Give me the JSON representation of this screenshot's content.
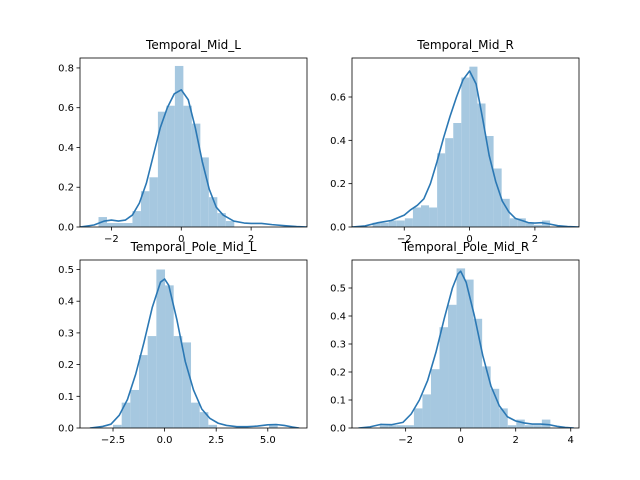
{
  "chart_data": [
    {
      "type": "histogram",
      "title": "Temporal_Mid_L",
      "xlim": [
        -2.9,
        3.6
      ],
      "ylim": [
        0,
        0.85
      ],
      "xticks": [
        -2,
        0,
        2
      ],
      "xtick_labels": [
        "−2",
        "0",
        "2"
      ],
      "yticks": [
        0,
        0.2,
        0.4,
        0.6,
        0.8
      ],
      "ytick_labels": [
        "0.0",
        "0.2",
        "0.4",
        "0.6",
        "0.8"
      ],
      "bin_width": 0.243,
      "bins": [
        {
          "x0": -2.37,
          "h": 0.05
        },
        {
          "x0": -2.127,
          "h": 0.02
        },
        {
          "x0": -1.884,
          "h": 0.02
        },
        {
          "x0": -1.641,
          "h": 0.02
        },
        {
          "x0": -1.398,
          "h": 0.08
        },
        {
          "x0": -1.155,
          "h": 0.18
        },
        {
          "x0": -0.912,
          "h": 0.25
        },
        {
          "x0": -0.669,
          "h": 0.58
        },
        {
          "x0": -0.426,
          "h": 0.61
        },
        {
          "x0": -0.183,
          "h": 0.81
        },
        {
          "x0": 0.06,
          "h": 0.61
        },
        {
          "x0": 0.303,
          "h": 0.52
        },
        {
          "x0": 0.546,
          "h": 0.35
        },
        {
          "x0": 0.789,
          "h": 0.15
        },
        {
          "x0": 1.032,
          "h": 0.07
        },
        {
          "x0": 1.275,
          "h": 0.03
        }
      ],
      "kde": {
        "x": [
          -2.9,
          -2.5,
          -2.2,
          -2.0,
          -1.8,
          -1.6,
          -1.4,
          -1.2,
          -1.0,
          -0.8,
          -0.6,
          -0.4,
          -0.2,
          0.0,
          0.2,
          0.4,
          0.6,
          0.8,
          1.0,
          1.2,
          1.5,
          1.8,
          2.0,
          2.3,
          2.6,
          3.0,
          3.3,
          3.6
        ],
        "y": [
          0.0,
          0.01,
          0.03,
          0.035,
          0.03,
          0.035,
          0.06,
          0.12,
          0.22,
          0.36,
          0.5,
          0.6,
          0.67,
          0.69,
          0.64,
          0.5,
          0.33,
          0.19,
          0.1,
          0.06,
          0.03,
          0.02,
          0.018,
          0.018,
          0.012,
          0.006,
          0.002,
          0.0
        ]
      }
    },
    {
      "type": "histogram",
      "title": "Temporal_Mid_R",
      "xlim": [
        -3.6,
        3.35
      ],
      "ylim": [
        0,
        0.78
      ],
      "xticks": [
        -2,
        0,
        2
      ],
      "xtick_labels": [
        "−2",
        "0",
        "2"
      ],
      "yticks": [
        0,
        0.2,
        0.4,
        0.6
      ],
      "ytick_labels": [
        "0.0",
        "0.2",
        "0.4",
        "0.6"
      ],
      "bin_width": 0.247,
      "bins": [
        {
          "x0": -2.97,
          "h": 0.02
        },
        {
          "x0": -2.723,
          "h": 0.02
        },
        {
          "x0": -2.476,
          "h": 0.03
        },
        {
          "x0": -2.229,
          "h": 0.03
        },
        {
          "x0": -1.982,
          "h": 0.04
        },
        {
          "x0": -1.735,
          "h": 0.09
        },
        {
          "x0": -1.488,
          "h": 0.1
        },
        {
          "x0": -1.241,
          "h": 0.09
        },
        {
          "x0": -0.994,
          "h": 0.34
        },
        {
          "x0": -0.747,
          "h": 0.41
        },
        {
          "x0": -0.5,
          "h": 0.48
        },
        {
          "x0": -0.253,
          "h": 0.69
        },
        {
          "x0": -0.006,
          "h": 0.74
        },
        {
          "x0": 0.241,
          "h": 0.57
        },
        {
          "x0": 0.488,
          "h": 0.42
        },
        {
          "x0": 0.735,
          "h": 0.27
        },
        {
          "x0": 0.982,
          "h": 0.13
        },
        {
          "x0": 1.229,
          "h": 0.04
        },
        {
          "x0": 1.476,
          "h": 0.04
        },
        {
          "x0": 1.723,
          "h": 0.02
        },
        {
          "x0": 1.97,
          "h": 0.01
        },
        {
          "x0": 2.217,
          "h": 0.03
        }
      ],
      "kde": {
        "x": [
          -3.6,
          -3.2,
          -2.8,
          -2.4,
          -2.0,
          -1.8,
          -1.6,
          -1.4,
          -1.2,
          -1.0,
          -0.8,
          -0.6,
          -0.4,
          -0.2,
          0.0,
          0.2,
          0.4,
          0.6,
          0.8,
          1.0,
          1.2,
          1.4,
          1.6,
          1.8,
          2.0,
          2.2,
          2.4,
          2.7,
          3.0,
          3.35
        ],
        "y": [
          0.0,
          0.005,
          0.02,
          0.03,
          0.055,
          0.08,
          0.1,
          0.13,
          0.2,
          0.3,
          0.41,
          0.51,
          0.6,
          0.68,
          0.72,
          0.66,
          0.5,
          0.33,
          0.21,
          0.12,
          0.07,
          0.04,
          0.03,
          0.02,
          0.018,
          0.02,
          0.015,
          0.006,
          0.002,
          0.0
        ]
      }
    },
    {
      "type": "histogram",
      "title": "Temporal_Pole_Mid_L",
      "xlim": [
        -4.1,
        6.9
      ],
      "ylim": [
        0,
        0.53
      ],
      "xticks": [
        -2.5,
        0.0,
        2.5,
        5.0
      ],
      "xtick_labels": [
        "−2.5",
        "0.0",
        "2.5",
        "5.0"
      ],
      "yticks": [
        0,
        0.1,
        0.2,
        0.3,
        0.4,
        0.5
      ],
      "ytick_labels": [
        "0.0",
        "0.1",
        "0.2",
        "0.3",
        "0.4",
        "0.5"
      ],
      "bin_width": 0.42,
      "bins": [
        {
          "x0": -2.5,
          "h": 0.01
        },
        {
          "x0": -2.08,
          "h": 0.08
        },
        {
          "x0": -1.66,
          "h": 0.12
        },
        {
          "x0": -1.24,
          "h": 0.23
        },
        {
          "x0": -0.82,
          "h": 0.29
        },
        {
          "x0": -0.4,
          "h": 0.5
        },
        {
          "x0": 0.02,
          "h": 0.45
        },
        {
          "x0": 0.44,
          "h": 0.29
        },
        {
          "x0": 0.86,
          "h": 0.27
        },
        {
          "x0": 1.28,
          "h": 0.08
        },
        {
          "x0": 1.7,
          "h": 0.05
        },
        {
          "x0": 2.12,
          "h": 0.01
        },
        {
          "x0": 5.06,
          "h": 0.01
        }
      ],
      "kde": {
        "x": [
          -3.6,
          -3.0,
          -2.6,
          -2.2,
          -1.8,
          -1.4,
          -1.0,
          -0.6,
          -0.2,
          0.0,
          0.2,
          0.6,
          1.0,
          1.4,
          1.8,
          2.2,
          2.6,
          3.0,
          3.5,
          4.0,
          4.5,
          5.0,
          5.4,
          5.8,
          6.2,
          6.5
        ],
        "y": [
          0.0,
          0.005,
          0.012,
          0.04,
          0.09,
          0.17,
          0.27,
          0.38,
          0.46,
          0.47,
          0.45,
          0.34,
          0.21,
          0.12,
          0.06,
          0.03,
          0.015,
          0.008,
          0.004,
          0.004,
          0.006,
          0.01,
          0.011,
          0.008,
          0.003,
          0.0
        ]
      }
    },
    {
      "type": "histogram",
      "title": "Temporal_Pole_Mid_R",
      "xlim": [
        -3.95,
        4.3
      ],
      "ylim": [
        0,
        0.6
      ],
      "xticks": [
        -2,
        0,
        2,
        4
      ],
      "xtick_labels": [
        "−2",
        "0",
        "2",
        "4"
      ],
      "yticks": [
        0,
        0.1,
        0.2,
        0.3,
        0.4,
        0.5
      ],
      "ytick_labels": [
        "0.0",
        "0.1",
        "0.2",
        "0.3",
        "0.4",
        "0.5"
      ],
      "bin_width": 0.31,
      "bins": [
        {
          "x0": -2.94,
          "h": 0.01
        },
        {
          "x0": -2.63,
          "h": 0.01
        },
        {
          "x0": -2.32,
          "h": 0.01
        },
        {
          "x0": -2.01,
          "h": 0.01
        },
        {
          "x0": -1.7,
          "h": 0.07
        },
        {
          "x0": -1.39,
          "h": 0.12
        },
        {
          "x0": -1.08,
          "h": 0.21
        },
        {
          "x0": -0.77,
          "h": 0.36
        },
        {
          "x0": -0.46,
          "h": 0.44
        },
        {
          "x0": -0.15,
          "h": 0.57
        },
        {
          "x0": 0.16,
          "h": 0.53
        },
        {
          "x0": 0.47,
          "h": 0.39
        },
        {
          "x0": 0.78,
          "h": 0.22
        },
        {
          "x0": 1.09,
          "h": 0.14
        },
        {
          "x0": 1.4,
          "h": 0.07
        },
        {
          "x0": 1.71,
          "h": 0.01
        },
        {
          "x0": 2.02,
          "h": 0.03
        },
        {
          "x0": 2.33,
          "h": 0.01
        },
        {
          "x0": 2.64,
          "h": 0.01
        },
        {
          "x0": 2.95,
          "h": 0.03
        }
      ],
      "kde": {
        "x": [
          -3.7,
          -3.3,
          -2.9,
          -2.5,
          -2.1,
          -1.8,
          -1.5,
          -1.2,
          -0.9,
          -0.6,
          -0.3,
          -0.1,
          0.0,
          0.2,
          0.5,
          0.8,
          1.1,
          1.4,
          1.7,
          2.0,
          2.3,
          2.6,
          2.9,
          3.2,
          3.5,
          3.8,
          4.1
        ],
        "y": [
          0.0,
          0.004,
          0.013,
          0.012,
          0.02,
          0.05,
          0.1,
          0.17,
          0.27,
          0.39,
          0.5,
          0.55,
          0.56,
          0.52,
          0.4,
          0.26,
          0.15,
          0.08,
          0.04,
          0.025,
          0.018,
          0.014,
          0.014,
          0.012,
          0.006,
          0.002,
          0.0
        ]
      }
    }
  ],
  "colors": {
    "bar_fill": "#a6c8e0",
    "kde_line": "#2b78b4",
    "axes": "#000000"
  }
}
